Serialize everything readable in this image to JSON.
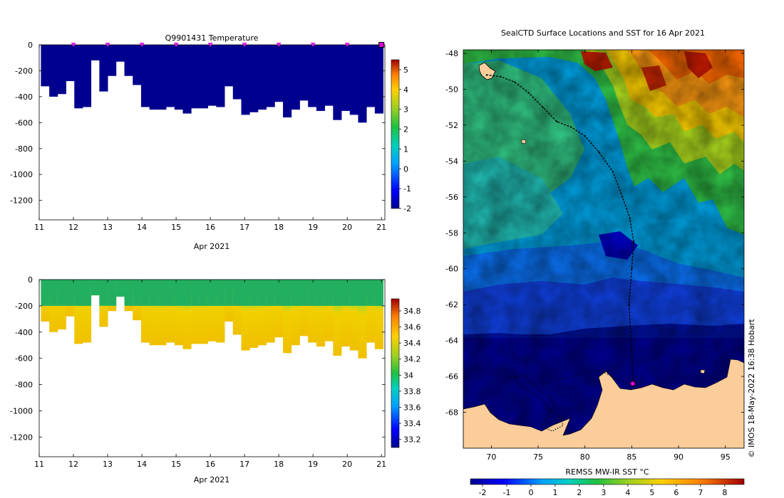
{
  "chart_data": [
    {
      "type": "heatmap",
      "title": "Q9901431  Temperature",
      "xlabel": "Apr 2021",
      "ylabel": "",
      "x_ticks": [
        "11",
        "12",
        "13",
        "14",
        "15",
        "16",
        "17",
        "18",
        "19",
        "20",
        "21"
      ],
      "y_ticks": [
        "0",
        "-200",
        "-400",
        "-600",
        "-800",
        "-1000",
        "-1200"
      ],
      "xlim": [
        11,
        21.1
      ],
      "ylim": [
        -1350,
        0
      ],
      "colorbar_ticks": [
        "5",
        "4",
        "3",
        "2",
        "1",
        "0",
        "-1",
        "-2"
      ],
      "colorbar_range": [
        -2,
        5.5
      ],
      "series": [
        {
          "name": "profile max depth (m)",
          "values": [
            -320,
            -400,
            -380,
            -280,
            -490,
            -480,
            -120,
            -360,
            -240,
            -130,
            -240,
            -310,
            -480,
            -500,
            -500,
            -480,
            -500,
            -530,
            -490,
            -490,
            -470,
            -480,
            -320,
            -420,
            -540,
            -520,
            -500,
            -480,
            -440,
            -560,
            -500,
            -430,
            -480,
            -510,
            -470,
            -580,
            -510,
            -540,
            -600,
            -480,
            -530
          ]
        }
      ],
      "markers": {
        "name": "profile surfacing days",
        "x": [
          12,
          13,
          14,
          15,
          16,
          17,
          18,
          19,
          20,
          21
        ]
      },
      "value_summary": "Water column temperature about -1.8 to -1.5 °C throughout"
    },
    {
      "type": "heatmap",
      "title": "",
      "xlabel": "Apr 2021",
      "ylabel": "",
      "x_ticks": [
        "11",
        "12",
        "13",
        "14",
        "15",
        "16",
        "17",
        "18",
        "19",
        "20",
        "21"
      ],
      "y_ticks": [
        "0",
        "-200",
        "-400",
        "-600",
        "-800",
        "-1000",
        "-1200"
      ],
      "xlim": [
        11,
        21.1
      ],
      "ylim": [
        -1350,
        0
      ],
      "colorbar_ticks": [
        "34.8",
        "34.6",
        "34.4",
        "34.2",
        "34",
        "33.8",
        "33.6",
        "33.4",
        "33.2"
      ],
      "colorbar_range": [
        33.1,
        34.95
      ],
      "series": [
        {
          "name": "profile max depth (m)",
          "values": [
            -320,
            -400,
            -380,
            -280,
            -490,
            -480,
            -120,
            -360,
            -240,
            -130,
            -240,
            -310,
            -480,
            -500,
            -500,
            -480,
            -500,
            -530,
            -490,
            -490,
            -470,
            -480,
            -320,
            -420,
            -540,
            -520,
            -500,
            -480,
            -440,
            -560,
            -500,
            -430,
            -480,
            -510,
            -470,
            -580,
            -510,
            -540,
            -600,
            -480,
            -530
          ]
        }
      ],
      "value_summary": "Salinity ~33.9 near surface increasing to ~34.5 below 250 m"
    },
    {
      "type": "heatmap",
      "title": "SealCTD Surface Locations and SST for 16 Apr 2021",
      "xlabel": "",
      "ylabel": "",
      "x_ticks": [
        "70",
        "75",
        "80",
        "85",
        "90",
        "95"
      ],
      "y_ticks": [
        "-48",
        "-50",
        "-52",
        "-54",
        "-56",
        "-58",
        "-60",
        "-62",
        "-64",
        "-66",
        "-68"
      ],
      "xlim": [
        67,
        97
      ],
      "ylim": [
        -70,
        -47.8
      ],
      "colorbar_label": "REMSS MW-IR SST °C",
      "colorbar_ticks": [
        "-2",
        "-1",
        "0",
        "1",
        "2",
        "3",
        "4",
        "5",
        "6",
        "7",
        "8"
      ],
      "colorbar_range": [
        -2.5,
        8.8
      ],
      "track_lon": [
        69.5,
        71.0,
        72.5,
        74.0,
        75.5,
        77.0,
        78.5,
        80.0,
        81.5,
        83.0,
        84.0,
        84.8,
        85.2,
        85.0,
        84.7,
        85.0,
        85.1
      ],
      "track_lat": [
        -49.2,
        -49.3,
        -49.6,
        -50.2,
        -51.0,
        -51.8,
        -52.1,
        -52.6,
        -53.5,
        -54.6,
        -56.0,
        -57.2,
        -58.5,
        -60.0,
        -62.0,
        -64.5,
        -66.3
      ],
      "current_position": {
        "lon": 85.1,
        "lat": -66.4
      },
      "credit": "© IMOS 18-May-2022 16:38 Hobart"
    }
  ]
}
